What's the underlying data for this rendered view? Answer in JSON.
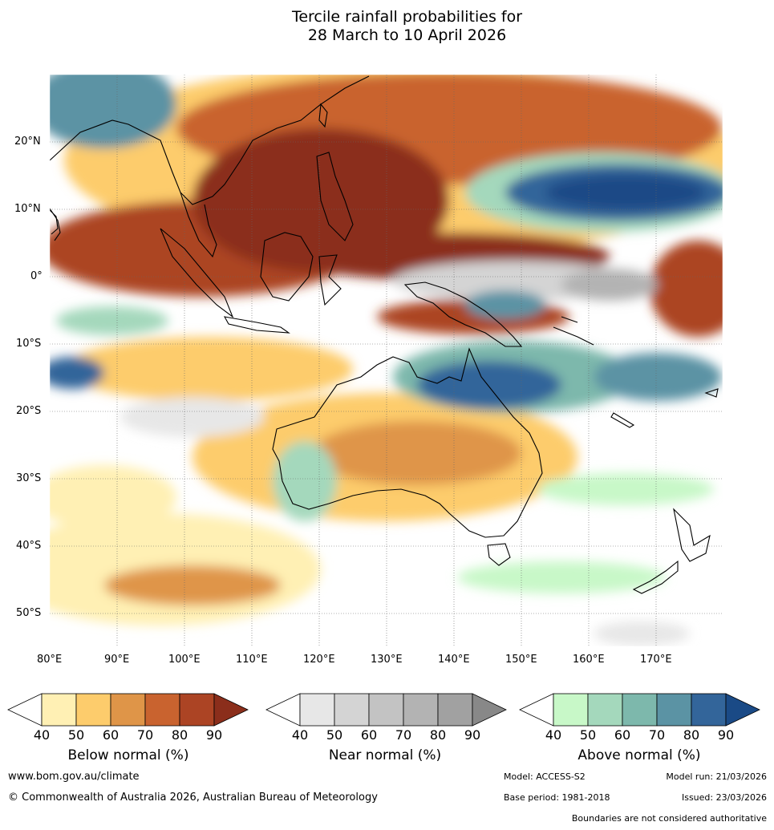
{
  "title": {
    "line1": "Tercile rainfall probabilities for",
    "line2": "28 March to 10 April 2026"
  },
  "map": {
    "lon_labels": [
      "80°E",
      "90°E",
      "100°E",
      "110°E",
      "120°E",
      "130°E",
      "140°E",
      "150°E",
      "160°E",
      "170°E"
    ],
    "lat_labels": [
      "20°N",
      "10°N",
      "0°",
      "10°S",
      "20°S",
      "30°S",
      "40°S",
      "50°S"
    ],
    "lon_range": [
      80,
      180
    ],
    "lat_range": [
      -55,
      30
    ]
  },
  "legend": {
    "below": {
      "title": "Below normal (%)",
      "ticks": [
        "40",
        "50",
        "60",
        "70",
        "80",
        "90"
      ],
      "colors": [
        "#fff0b4",
        "#fdcc6c",
        "#df9548",
        "#c9632f",
        "#ac4424",
        "#8b2e1b"
      ]
    },
    "near": {
      "title": "Near normal (%)",
      "ticks": [
        "40",
        "50",
        "60",
        "70",
        "80",
        "90"
      ],
      "colors": [
        "#e7e7e7",
        "#d4d4d4",
        "#c3c3c3",
        "#b3b3b3",
        "#a1a1a1",
        "#888888"
      ]
    },
    "above": {
      "title": "Above normal (%)",
      "ticks": [
        "40",
        "50",
        "60",
        "70",
        "80",
        "90"
      ],
      "colors": [
        "#c8f8c8",
        "#a4d8bc",
        "#7db8ac",
        "#5b93a4",
        "#33659a",
        "#1a4a86"
      ]
    }
  },
  "footer": {
    "website": "www.bom.gov.au/climate",
    "copyright": "© Commonwealth of Australia 2026, Australian Bureau of Meteorology",
    "model": "Model: ACCESS-S2",
    "model_run": "Model run: 21/03/2026",
    "base_period": "Base period: 1981-2018",
    "issued": "Issued: 23/03/2026",
    "disclaimer": "Boundaries are not considered authoritative"
  }
}
